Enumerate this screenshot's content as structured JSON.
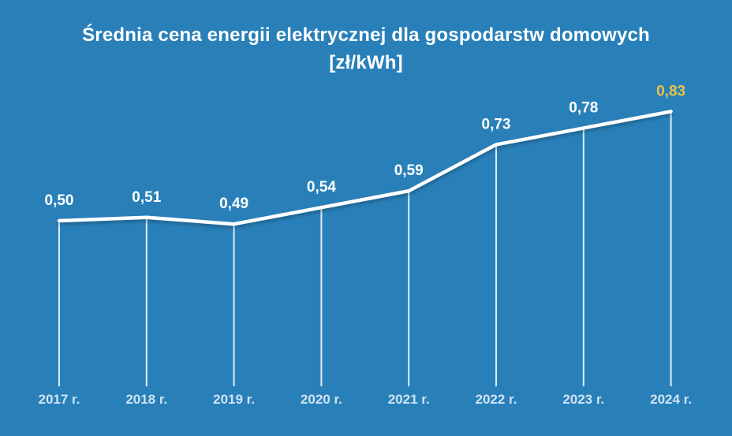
{
  "chart_data": {
    "type": "line",
    "title": "Średnia cena energii elektrycznej dla gospodarstw domowych",
    "subtitle": "[zł/kWh]",
    "categories": [
      "2017 r.",
      "2018 r.",
      "2019 r.",
      "2020 r.",
      "2021 r.",
      "2022 r.",
      "2023 r.",
      "2024 r."
    ],
    "values": [
      0.5,
      0.51,
      0.49,
      0.54,
      0.59,
      0.73,
      0.78,
      0.83
    ],
    "value_labels": [
      "0,50",
      "0,51",
      "0,49",
      "0,54",
      "0,59",
      "0,73",
      "0,78",
      "0,83"
    ],
    "highlight_last_label": true,
    "ylim": [
      0,
      1
    ],
    "grid": false,
    "legend": "none",
    "colors": {
      "background": "#2980b9",
      "line": "#ffffff",
      "drop_line": "#ffffff",
      "value_label": "#ffffff",
      "highlight_label": "#e9c54b",
      "axis_label": "#cfe2f3",
      "title": "#ffffff"
    }
  }
}
